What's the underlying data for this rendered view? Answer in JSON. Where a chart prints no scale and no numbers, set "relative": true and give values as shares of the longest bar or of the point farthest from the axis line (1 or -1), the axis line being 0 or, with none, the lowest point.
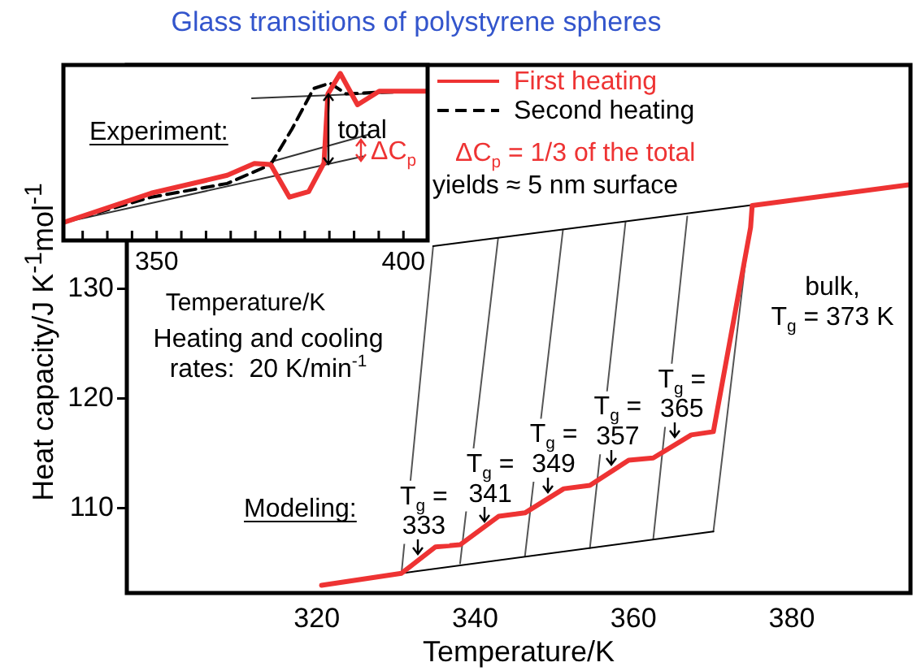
{
  "chart_data": [
    {
      "type": "line",
      "title": "Glass transitions of polystyrene spheres",
      "xlabel": "Temperature/K",
      "ylabel": "Heat capacity/J K$^{-1}$mol$^{-1}$",
      "xlim": [
        296,
        395
      ],
      "ylim": [
        102.3,
        150.4
      ],
      "xticks": [
        320,
        340,
        360,
        380
      ],
      "yticks": [
        110,
        120,
        130
      ],
      "series": [
        {
          "color": "#ee3333",
          "x": [
            320.6,
            330.7,
            335.0,
            338.1,
            343.0,
            346.3,
            351.2,
            354.5,
            359.4,
            362.5,
            367.3,
            370.1,
            374.8,
            375.0,
            395
          ],
          "values": [
            103.0,
            104.1,
            106.5,
            106.7,
            109.3,
            109.6,
            111.8,
            112.1,
            114.4,
            114.6,
            116.7,
            117.0,
            135.6,
            137.6,
            139.5
          ]
        },
        {
          "color": "#000000",
          "x": [
            330.7,
            370.1
          ],
          "values": [
            104.1,
            107.9
          ]
        },
        {
          "color": "#000000",
          "x": [
            334.7,
            395
          ],
          "values": [
            133.9,
            139.5
          ]
        },
        {
          "color": "#555555",
          "x": [
            330.7,
            334.7
          ],
          "values": [
            104.1,
            133.9
          ]
        },
        {
          "color": "#555555",
          "x": [
            338.1,
            342.9
          ],
          "values": [
            105.0,
            134.6
          ]
        },
        {
          "color": "#555555",
          "x": [
            346.3,
            351.1
          ],
          "values": [
            105.7,
            135.4
          ]
        },
        {
          "color": "#555555",
          "x": [
            354.5,
            359.0
          ],
          "values": [
            106.4,
            136.1
          ]
        },
        {
          "color": "#555555",
          "x": [
            362.5,
            366.8
          ],
          "values": [
            107.2,
            136.6
          ]
        },
        {
          "color": "#555555",
          "x": [
            370.1,
            375.0
          ],
          "values": [
            107.9,
            137.6
          ]
        }
      ],
      "annotations": [
        "Heating and cooling\nrates:  20 K/min$^{-1}$",
        "Modeling:",
        {
          "text": "T$_{g}$ =\n333",
          "x": 332.7,
          "y": 105.75
        },
        {
          "text": "T$_{g}$ =\n341",
          "x": 341.1,
          "y": 108.7
        },
        {
          "text": "T$_{g}$ =\n349",
          "x": 349.1,
          "y": 111.4
        },
        {
          "text": "T$_{g}$ =\n357",
          "x": 357.2,
          "y": 113.9
        },
        {
          "text": "T$_{g}$ =\n365",
          "x": 365.3,
          "y": 116.4
        },
        "bulk,\nT$_{g}$ = 373 K"
      ]
    },
    {
      "type": "line",
      "xlabel": "Temperature/K",
      "relative": true,
      "legend": "right",
      "xlim": [
        331.1,
        404.9
      ],
      "xticks": [
        {
          "value": 335,
          "label": null
        },
        {
          "value": 340,
          "label": null
        },
        {
          "value": 345,
          "label": null
        },
        350,
        {
          "value": 355,
          "label": null
        },
        {
          "value": 360,
          "label": null
        },
        {
          "value": 365,
          "label": null
        },
        {
          "value": 370,
          "label": null
        },
        {
          "value": 375,
          "label": null
        },
        {
          "value": 380,
          "label": null
        },
        {
          "value": 385,
          "label": null
        },
        {
          "value": 390,
          "label": null
        },
        {
          "value": 395,
          "label": null
        },
        400
      ],
      "series": [
        {
          "name": "First heating",
          "color": "#ee3333",
          "line_style": "solid",
          "x": [
            331.1,
            348.9,
            364.3,
            369.8,
            373.1,
            376.9,
            380.8,
            383.9,
            384.7,
            387.2,
            390.7,
            395.1,
            404.9
          ],
          "values": [
            0.107,
            0.283,
            0.39,
            0.461,
            0.454,
            0.259,
            0.292,
            0.464,
            0.877,
            1.0,
            0.812,
            0.893,
            0.893
          ]
        },
        {
          "name": "Second heating",
          "color": "#000000",
          "line_style": "dashed",
          "x": [
            331.1,
            348.9,
            364.3,
            373.1,
            377.4,
            381.8,
            385.1,
            388.4,
            395.1,
            404.9
          ],
          "values": [
            0.107,
            0.259,
            0.341,
            0.454,
            0.666,
            0.909,
            0.942,
            0.877,
            0.887,
            0.893
          ]
        },
        {
          "color": "#333333",
          "line_style": "solid",
          "x": [
            331.1,
            391.8
          ],
          "values": [
            0.107,
            0.503
          ]
        },
        {
          "color": "#333333",
          "line_style": "solid",
          "x": [
            373.1,
            392.9
          ],
          "values": [
            0.47,
            0.633
          ]
        },
        {
          "color": "#333333",
          "line_style": "solid",
          "x": [
            369.3,
            404.9
          ],
          "values": [
            0.851,
            0.893
          ]
        }
      ],
      "annotations": [
        "Experiment:",
        {
          "text": "total",
          "x": 384.7,
          "y": 0.67
        },
        "ΔC$_{p}$",
        "ΔC$_{p}$ = 1/3 of the total",
        "yields ≈ 5 nm surface"
      ]
    }
  ]
}
